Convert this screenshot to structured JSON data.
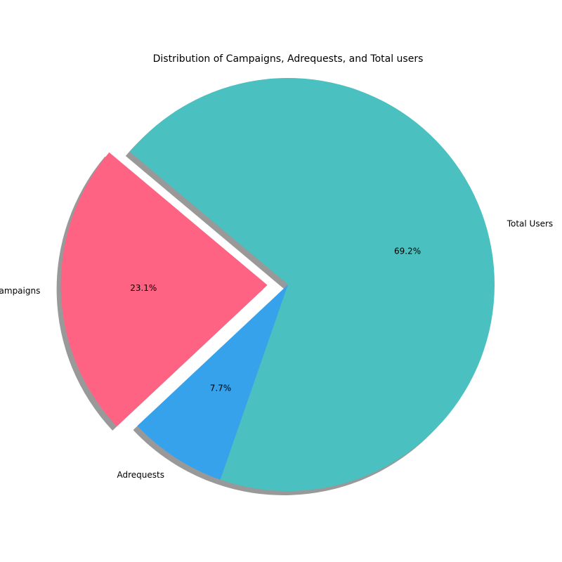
{
  "chart_data": {
    "type": "pie",
    "title": "Distribution of Campaigns, Adrequests, and Total users",
    "slices": [
      {
        "label": "Campaigns",
        "value": 23.1,
        "pct_label": "23.1%",
        "color": "#FF6384",
        "exploded": true
      },
      {
        "label": "Adrequests",
        "value": 7.7,
        "pct_label": "7.7%",
        "color": "#36A2EB",
        "exploded": false
      },
      {
        "label": "Total Users",
        "value": 69.2,
        "pct_label": "69.2%",
        "color": "#4BC0C0",
        "exploded": false
      }
    ],
    "start_angle_deg": 140,
    "direction": "counterclockwise",
    "shadow": true
  }
}
